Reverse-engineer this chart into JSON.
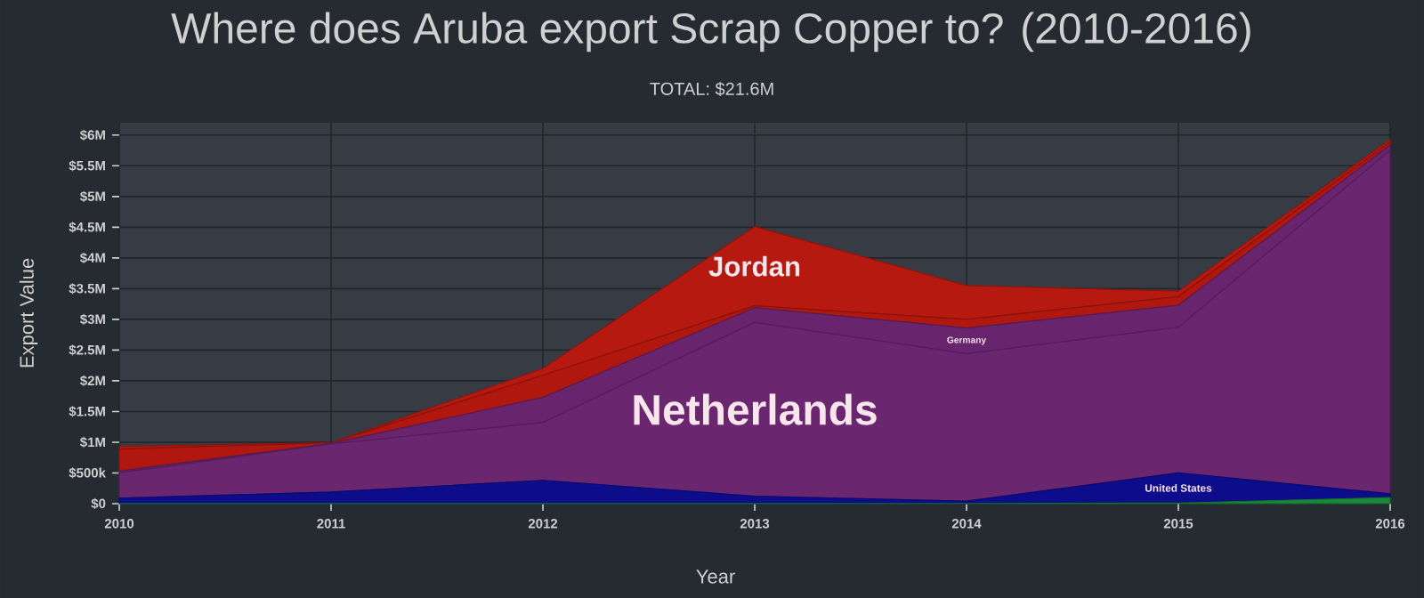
{
  "chart_data": {
    "type": "area",
    "stacked": true,
    "title": "Where does Aruba export Scrap Copper to? (2010-2016)",
    "subtitle": "TOTAL: $21.6M",
    "xlabel": "Year",
    "ylabel": "Export Value",
    "x": [
      2010,
      2011,
      2012,
      2013,
      2014,
      2015,
      2016
    ],
    "xlim": [
      2010,
      2016
    ],
    "xticks": [
      2010,
      2011,
      2012,
      2013,
      2014,
      2015,
      2016
    ],
    "ylim": [
      0,
      6200000
    ],
    "yticks": [
      {
        "value": 0,
        "label": "$0"
      },
      {
        "value": 500000,
        "label": "$500k"
      },
      {
        "value": 1000000,
        "label": "$1M"
      },
      {
        "value": 1500000,
        "label": "$1.5M"
      },
      {
        "value": 2000000,
        "label": "$2M"
      },
      {
        "value": 2500000,
        "label": "$2.5M"
      },
      {
        "value": 3000000,
        "label": "$3M"
      },
      {
        "value": 3500000,
        "label": "$3.5M"
      },
      {
        "value": 4000000,
        "label": "$4M"
      },
      {
        "value": 4500000,
        "label": "$4.5M"
      },
      {
        "value": 5000000,
        "label": "$5M"
      },
      {
        "value": 5500000,
        "label": "$5.5M"
      },
      {
        "value": 6000000,
        "label": "$6M"
      }
    ],
    "grid": true,
    "legend": false,
    "series": [
      {
        "color": "#1a8a3a",
        "values": [
          0,
          0,
          0,
          0,
          0,
          10000,
          100000
        ]
      },
      {
        "name": "United States",
        "color": "#0d0d8c",
        "values": [
          90000,
          190000,
          380000,
          120000,
          40000,
          490000,
          60000
        ]
      },
      {
        "name": "Netherlands",
        "color": "#6b2670",
        "values": [
          410000,
          780000,
          940000,
          2830000,
          2400000,
          2370000,
          5590000
        ]
      },
      {
        "name": "Germany",
        "color": "#68246c",
        "values": [
          30000,
          10000,
          410000,
          240000,
          420000,
          360000,
          90000
        ]
      },
      {
        "color": "#b0170f",
        "values": [
          360000,
          10000,
          360000,
          30000,
          140000,
          140000,
          50000
        ]
      },
      {
        "name": "Jordan",
        "color": "#b5190f",
        "values": [
          40000,
          0,
          110000,
          1290000,
          550000,
          90000,
          40000
        ]
      }
    ]
  }
}
